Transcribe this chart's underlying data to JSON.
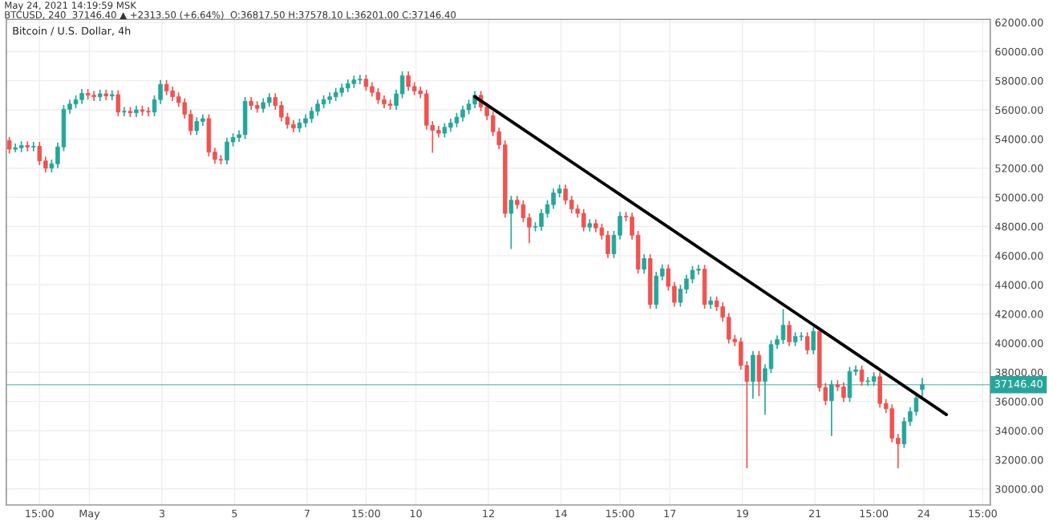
{
  "chart_data": {
    "type": "candlestick",
    "title": "Bitcoin / U.S. Dollar, 4h",
    "annotations": [
      "May 24, 2021 14:19:59 MSK",
      "BTCUSD, 240  37146.40 ▲ +2313.50 (+6.64%)  O:36817.50 H:37578.10 L:36201.00 C:37146.40"
    ],
    "x": [
      "2021-04-28T19:00",
      "2021-04-28T23:00",
      "2021-04-29T03:00",
      "2021-04-29T07:00",
      "2021-04-29T11:00",
      "2021-04-29T15:00",
      "2021-04-29T19:00",
      "2021-04-29T23:00",
      "2021-04-30T03:00",
      "2021-04-30T07:00",
      "2021-04-30T11:00",
      "2021-04-30T15:00",
      "2021-04-30T19:00",
      "2021-04-30T23:00",
      "2021-05-01T03:00",
      "2021-05-01T07:00",
      "2021-05-01T11:00",
      "2021-05-01T15:00",
      "2021-05-01T19:00",
      "2021-05-01T23:00",
      "2021-05-02T03:00",
      "2021-05-02T07:00",
      "2021-05-02T11:00",
      "2021-05-02T15:00",
      "2021-05-02T19:00",
      "2021-05-02T23:00",
      "2021-05-03T03:00",
      "2021-05-03T07:00",
      "2021-05-03T11:00",
      "2021-05-03T15:00",
      "2021-05-03T19:00",
      "2021-05-03T23:00",
      "2021-05-04T03:00",
      "2021-05-04T07:00",
      "2021-05-04T11:00",
      "2021-05-04T15:00",
      "2021-05-04T19:00",
      "2021-05-04T23:00",
      "2021-05-05T03:00",
      "2021-05-05T07:00",
      "2021-05-05T11:00",
      "2021-05-05T15:00",
      "2021-05-05T19:00",
      "2021-05-05T23:00",
      "2021-05-06T03:00",
      "2021-05-06T07:00",
      "2021-05-06T11:00",
      "2021-05-06T15:00",
      "2021-05-06T19:00",
      "2021-05-06T23:00",
      "2021-05-07T03:00",
      "2021-05-07T07:00",
      "2021-05-07T11:00",
      "2021-05-07T15:00",
      "2021-05-07T19:00",
      "2021-05-07T23:00",
      "2021-05-08T03:00",
      "2021-05-08T07:00",
      "2021-05-08T11:00",
      "2021-05-08T15:00",
      "2021-05-08T19:00",
      "2021-05-08T23:00",
      "2021-05-09T03:00",
      "2021-05-09T07:00",
      "2021-05-09T11:00",
      "2021-05-09T15:00",
      "2021-05-09T19:00",
      "2021-05-09T23:00",
      "2021-05-10T03:00",
      "2021-05-10T07:00",
      "2021-05-10T11:00",
      "2021-05-10T15:00",
      "2021-05-10T19:00",
      "2021-05-10T23:00",
      "2021-05-11T03:00",
      "2021-05-11T07:00",
      "2021-05-11T11:00",
      "2021-05-11T15:00",
      "2021-05-11T19:00",
      "2021-05-11T23:00",
      "2021-05-12T03:00",
      "2021-05-12T07:00",
      "2021-05-12T11:00",
      "2021-05-12T15:00",
      "2021-05-12T19:00",
      "2021-05-12T23:00",
      "2021-05-13T03:00",
      "2021-05-13T07:00",
      "2021-05-13T11:00",
      "2021-05-13T15:00",
      "2021-05-13T19:00",
      "2021-05-13T23:00",
      "2021-05-14T03:00",
      "2021-05-14T07:00",
      "2021-05-14T11:00",
      "2021-05-14T15:00",
      "2021-05-14T19:00",
      "2021-05-14T23:00",
      "2021-05-15T03:00",
      "2021-05-15T07:00",
      "2021-05-15T11:00",
      "2021-05-15T15:00",
      "2021-05-15T19:00",
      "2021-05-15T23:00",
      "2021-05-16T03:00",
      "2021-05-16T07:00",
      "2021-05-16T11:00",
      "2021-05-16T15:00",
      "2021-05-16T19:00",
      "2021-05-16T23:00",
      "2021-05-17T03:00",
      "2021-05-17T07:00",
      "2021-05-17T11:00",
      "2021-05-17T15:00",
      "2021-05-17T19:00",
      "2021-05-17T23:00",
      "2021-05-18T03:00",
      "2021-05-18T07:00",
      "2021-05-18T11:00",
      "2021-05-18T15:00",
      "2021-05-18T19:00",
      "2021-05-18T23:00",
      "2021-05-19T03:00",
      "2021-05-19T07:00",
      "2021-05-19T11:00",
      "2021-05-19T15:00",
      "2021-05-19T19:00",
      "2021-05-19T23:00",
      "2021-05-20T03:00",
      "2021-05-20T07:00",
      "2021-05-20T11:00",
      "2021-05-20T15:00",
      "2021-05-20T19:00",
      "2021-05-20T23:00",
      "2021-05-21T03:00",
      "2021-05-21T07:00",
      "2021-05-21T11:00",
      "2021-05-21T15:00",
      "2021-05-21T19:00",
      "2021-05-21T23:00",
      "2021-05-22T03:00",
      "2021-05-22T07:00",
      "2021-05-22T11:00",
      "2021-05-22T15:00",
      "2021-05-22T19:00",
      "2021-05-22T23:00",
      "2021-05-23T03:00",
      "2021-05-23T07:00",
      "2021-05-23T11:00",
      "2021-05-23T15:00",
      "2021-05-23T19:00",
      "2021-05-23T23:00"
    ],
    "ohlc": [
      [
        53900,
        54100,
        53050,
        53300
      ],
      [
        53300,
        53650,
        53150,
        53400
      ],
      [
        53400,
        53800,
        53150,
        53550
      ],
      [
        53550,
        53800,
        53200,
        53450
      ],
      [
        53450,
        53750,
        53200,
        53500
      ],
      [
        53500,
        53750,
        52250,
        52500
      ],
      [
        52500,
        52750,
        51750,
        52000
      ],
      [
        52000,
        52550,
        51750,
        52300
      ],
      [
        52300,
        53710,
        52050,
        53460
      ],
      [
        53460,
        56290,
        53210,
        56040
      ],
      [
        56040,
        56650,
        55790,
        56400
      ],
      [
        56400,
        56950,
        56150,
        56700
      ],
      [
        56700,
        57380,
        56450,
        57130
      ],
      [
        57130,
        57380,
        56750,
        57000
      ],
      [
        57000,
        57250,
        56650,
        56900
      ],
      [
        56900,
        57350,
        56650,
        57100
      ],
      [
        57100,
        57350,
        56700,
        56950
      ],
      [
        56950,
        57300,
        56700,
        57050
      ],
      [
        57050,
        57300,
        55600,
        55850
      ],
      [
        55850,
        56150,
        55600,
        55900
      ],
      [
        55900,
        56150,
        55550,
        55800
      ],
      [
        55800,
        56250,
        55550,
        56000
      ],
      [
        56000,
        56250,
        55650,
        55900
      ],
      [
        55900,
        56150,
        55600,
        55850
      ],
      [
        55850,
        56950,
        55600,
        56700
      ],
      [
        56700,
        58000,
        56450,
        57750
      ],
      [
        57750,
        58000,
        57050,
        57300
      ],
      [
        57300,
        57550,
        56650,
        56900
      ],
      [
        56900,
        57150,
        56250,
        56500
      ],
      [
        56500,
        56750,
        55450,
        55700
      ],
      [
        55700,
        55950,
        54320,
        54570
      ],
      [
        54570,
        55450,
        54320,
        55200
      ],
      [
        55200,
        55650,
        54950,
        55400
      ],
      [
        55400,
        55650,
        52850,
        53100
      ],
      [
        53100,
        53350,
        52350,
        52600
      ],
      [
        52600,
        52850,
        52300,
        52550
      ],
      [
        52550,
        54050,
        52300,
        53800
      ],
      [
        53800,
        54350,
        53550,
        54100
      ],
      [
        54100,
        54550,
        53850,
        54300
      ],
      [
        54300,
        56840,
        54050,
        56590
      ],
      [
        56590,
        56840,
        56050,
        56300
      ],
      [
        56300,
        56550,
        55850,
        56100
      ],
      [
        56100,
        56750,
        55850,
        56500
      ],
      [
        56500,
        57100,
        56250,
        56850
      ],
      [
        56850,
        57100,
        56050,
        56300
      ],
      [
        56300,
        56550,
        55250,
        55500
      ],
      [
        55500,
        55750,
        54750,
        55000
      ],
      [
        55000,
        55250,
        54500,
        54750
      ],
      [
        54750,
        55350,
        54500,
        55100
      ],
      [
        55100,
        55650,
        54850,
        55400
      ],
      [
        55400,
        56150,
        55150,
        55900
      ],
      [
        55900,
        56650,
        55650,
        56400
      ],
      [
        56400,
        56950,
        56150,
        56700
      ],
      [
        56700,
        57150,
        56450,
        56900
      ],
      [
        56900,
        57450,
        56650,
        57200
      ],
      [
        57200,
        57750,
        56950,
        57500
      ],
      [
        57500,
        58050,
        57250,
        57800
      ],
      [
        57800,
        58300,
        57550,
        58050
      ],
      [
        58050,
        58350,
        57800,
        58100
      ],
      [
        58100,
        58350,
        57350,
        57600
      ],
      [
        57600,
        57850,
        56950,
        57200
      ],
      [
        57200,
        57450,
        56450,
        56700
      ],
      [
        56700,
        56950,
        56150,
        56400
      ],
      [
        56400,
        56650,
        56050,
        56300
      ],
      [
        56300,
        57350,
        56050,
        57100
      ],
      [
        57100,
        58590,
        56850,
        58340
      ],
      [
        58340,
        58590,
        57350,
        57600
      ],
      [
        57600,
        57850,
        57050,
        57300
      ],
      [
        57300,
        57550,
        56850,
        57100
      ],
      [
        57100,
        57350,
        54690,
        54940
      ],
      [
        54940,
        55190,
        53100,
        54600
      ],
      [
        54600,
        54850,
        54150,
        54400
      ],
      [
        54400,
        55050,
        54150,
        54800
      ],
      [
        54800,
        55350,
        54550,
        55100
      ],
      [
        55100,
        55750,
        54850,
        55500
      ],
      [
        55500,
        56250,
        55250,
        56000
      ],
      [
        56000,
        56650,
        55750,
        56400
      ],
      [
        56400,
        57250,
        56150,
        57000
      ],
      [
        57000,
        57250,
        55950,
        56200
      ],
      [
        56200,
        56450,
        55350,
        55600
      ],
      [
        55600,
        55850,
        54250,
        54500
      ],
      [
        54500,
        54750,
        53350,
        53600
      ],
      [
        53600,
        53850,
        48650,
        48900
      ],
      [
        48900,
        50050,
        46500,
        49800
      ],
      [
        49800,
        50050,
        49250,
        49500
      ],
      [
        49500,
        49750,
        48350,
        48600
      ],
      [
        48600,
        48850,
        46900,
        47960
      ],
      [
        47960,
        48250,
        47710,
        48000
      ],
      [
        48000,
        49150,
        47750,
        48900
      ],
      [
        48900,
        49750,
        48650,
        49500
      ],
      [
        49500,
        50550,
        49250,
        50300
      ],
      [
        50300,
        50820,
        50050,
        50570
      ],
      [
        50570,
        50820,
        49550,
        49800
      ],
      [
        49800,
        50050,
        48950,
        49200
      ],
      [
        49200,
        49450,
        48650,
        48900
      ],
      [
        48900,
        49150,
        47710,
        47960
      ],
      [
        47960,
        48450,
        47710,
        48200
      ],
      [
        48200,
        48450,
        47650,
        47900
      ],
      [
        47900,
        48150,
        47150,
        47400
      ],
      [
        47400,
        47650,
        45880,
        46130
      ],
      [
        46130,
        47650,
        45880,
        47400
      ],
      [
        47400,
        48950,
        47150,
        48700
      ],
      [
        48700,
        48950,
        48400,
        48650
      ],
      [
        48650,
        48900,
        47150,
        47400
      ],
      [
        47400,
        47650,
        44820,
        45070
      ],
      [
        45070,
        46050,
        44820,
        45800
      ],
      [
        45800,
        46050,
        42400,
        42650
      ],
      [
        42650,
        44850,
        42400,
        44600
      ],
      [
        44600,
        45350,
        44350,
        45100
      ],
      [
        45100,
        45350,
        43650,
        43900
      ],
      [
        43900,
        44150,
        42550,
        42800
      ],
      [
        42800,
        43950,
        42550,
        43700
      ],
      [
        43700,
        44650,
        43450,
        44400
      ],
      [
        44400,
        45250,
        44150,
        45000
      ],
      [
        45000,
        45320,
        44750,
        45070
      ],
      [
        45070,
        45320,
        42400,
        42650
      ],
      [
        42650,
        43150,
        42400,
        42900
      ],
      [
        42900,
        43150,
        42250,
        42500
      ],
      [
        42500,
        42750,
        41520,
        41770
      ],
      [
        41770,
        42020,
        40020,
        40270
      ],
      [
        40270,
        40520,
        39840,
        40090
      ],
      [
        40090,
        40340,
        38220,
        38470
      ],
      [
        38470,
        38720,
        31460,
        37370
      ],
      [
        37370,
        39420,
        36230,
        39170
      ],
      [
        39170,
        39420,
        36400,
        37370
      ],
      [
        37370,
        38500,
        35140,
        38250
      ],
      [
        38250,
        40150,
        38000,
        39900
      ],
      [
        39900,
        40490,
        39650,
        40240
      ],
      [
        40240,
        42290,
        39990,
        41220
      ],
      [
        41220,
        41470,
        39840,
        40090
      ],
      [
        40090,
        40700,
        39840,
        40450
      ],
      [
        40450,
        40700,
        40200,
        40450
      ],
      [
        40450,
        40700,
        39280,
        39530
      ],
      [
        39530,
        41050,
        39280,
        40800
      ],
      [
        40800,
        41050,
        36710,
        36960
      ],
      [
        36960,
        37210,
        35800,
        36050
      ],
      [
        36050,
        37400,
        33670,
        37150
      ],
      [
        37150,
        37400,
        36750,
        37000
      ],
      [
        37000,
        37250,
        36020,
        36270
      ],
      [
        36270,
        38310,
        36020,
        38060
      ],
      [
        38060,
        38420,
        37810,
        38170
      ],
      [
        38170,
        38420,
        37120,
        37370
      ],
      [
        37370,
        37620,
        37120,
        37370
      ],
      [
        37370,
        37950,
        37120,
        37700
      ],
      [
        37700,
        37950,
        35610,
        35860
      ],
      [
        35860,
        36110,
        35250,
        35500
      ],
      [
        35500,
        35750,
        33230,
        33480
      ],
      [
        33480,
        33730,
        31460,
        33100
      ],
      [
        33100,
        34870,
        32850,
        34620
      ],
      [
        34620,
        35560,
        34370,
        35310
      ],
      [
        35310,
        36480,
        35060,
        36230
      ],
      [
        36817.5,
        37578.1,
        36201,
        37146.4
      ]
    ],
    "colors": [
      "#ef5350",
      "#26a69a",
      "#26a69a",
      "#ef5350",
      "#26a69a",
      "#ef5350",
      "#ef5350",
      "#26a69a",
      "#26a69a",
      "#26a69a",
      "#26a69a",
      "#26a69a",
      "#26a69a",
      "#ef5350",
      "#ef5350",
      "#26a69a",
      "#ef5350",
      "#26a69a",
      "#ef5350",
      "#26a69a",
      "#ef5350",
      "#26a69a",
      "#ef5350",
      "#ef5350",
      "#26a69a",
      "#26a69a",
      "#ef5350",
      "#ef5350",
      "#ef5350",
      "#ef5350",
      "#ef5350",
      "#26a69a",
      "#26a69a",
      "#ef5350",
      "#ef5350",
      "#ef5350",
      "#26a69a",
      "#26a69a",
      "#26a69a",
      "#26a69a",
      "#ef5350",
      "#ef5350",
      "#26a69a",
      "#26a69a",
      "#ef5350",
      "#ef5350",
      "#ef5350",
      "#ef5350",
      "#26a69a",
      "#26a69a",
      "#26a69a",
      "#26a69a",
      "#26a69a",
      "#26a69a",
      "#26a69a",
      "#26a69a",
      "#26a69a",
      "#26a69a",
      "#26a69a",
      "#ef5350",
      "#ef5350",
      "#ef5350",
      "#ef5350",
      "#ef5350",
      "#26a69a",
      "#26a69a",
      "#ef5350",
      "#ef5350",
      "#ef5350",
      "#ef5350",
      "#ef5350",
      "#ef5350",
      "#26a69a",
      "#26a69a",
      "#26a69a",
      "#26a69a",
      "#26a69a",
      "#26a69a",
      "#ef5350",
      "#ef5350",
      "#ef5350",
      "#ef5350",
      "#ef5350",
      "#26a69a",
      "#ef5350",
      "#ef5350",
      "#ef5350",
      "#26a69a",
      "#26a69a",
      "#26a69a",
      "#26a69a",
      "#26a69a",
      "#ef5350",
      "#ef5350",
      "#ef5350",
      "#ef5350",
      "#26a69a",
      "#ef5350",
      "#ef5350",
      "#ef5350",
      "#26a69a",
      "#26a69a",
      "#ef5350",
      "#ef5350",
      "#ef5350",
      "#26a69a",
      "#ef5350",
      "#26a69a",
      "#26a69a",
      "#ef5350",
      "#ef5350",
      "#26a69a",
      "#26a69a",
      "#26a69a",
      "#26a69a",
      "#ef5350",
      "#26a69a",
      "#ef5350",
      "#ef5350",
      "#ef5350",
      "#ef5350",
      "#ef5350",
      "#ef5350",
      "#26a69a",
      "#ef5350",
      "#26a69a",
      "#26a69a",
      "#26a69a",
      "#26a69a",
      "#ef5350",
      "#26a69a",
      "#26a69a",
      "#ef5350",
      "#26a69a",
      "#ef5350",
      "#ef5350",
      "#26a69a",
      "#ef5350",
      "#ef5350",
      "#26a69a",
      "#26a69a",
      "#ef5350",
      "#26a69a",
      "#26a69a",
      "#ef5350",
      "#ef5350",
      "#ef5350",
      "#ef5350",
      "#26a69a",
      "#26a69a",
      "#26a69a",
      "#26a69a"
    ],
    "series": [
      {
        "type": "line",
        "x": [
          "2021-05-11T15:00",
          "2021-05-24T15:00"
        ],
        "values": [
          56900,
          35100
        ],
        "color": "#000000"
      }
    ],
    "ref_lines": [
      {
        "axis": "y",
        "value": 37146.4,
        "label": "37146.40",
        "color": "#26a69a"
      }
    ],
    "xlim": [
      "2021-04-28T17:00",
      "2021-05-25T20:00"
    ],
    "xticks": [
      {
        "value": "2021-04-29T15:00",
        "label": "15:00"
      },
      {
        "value": "2021-05-01",
        "label": "May"
      },
      {
        "value": "2021-05-03",
        "label": "3"
      },
      {
        "value": "2021-05-05",
        "label": "5"
      },
      {
        "value": "2021-05-07",
        "label": "7"
      },
      {
        "value": "2021-05-08T15:00",
        "label": "15:00"
      },
      {
        "value": "2021-05-10",
        "label": "10"
      },
      {
        "value": "2021-05-12",
        "label": "12"
      },
      {
        "value": "2021-05-14",
        "label": "14"
      },
      {
        "value": "2021-05-15T15:00",
        "label": "15:00"
      },
      {
        "value": "2021-05-17",
        "label": "17"
      },
      {
        "value": "2021-05-19",
        "label": "19"
      },
      {
        "value": "2021-05-21",
        "label": "21"
      },
      {
        "value": "2021-05-22T15:00",
        "label": "15:00"
      },
      {
        "value": "2021-05-24",
        "label": "24"
      },
      {
        "value": "2021-05-25T15:00",
        "label": "15:00"
      }
    ],
    "ylim": [
      28900,
      62200
    ],
    "yticks": [
      {
        "value": 30000,
        "label": "30000.00"
      },
      {
        "value": 32000,
        "label": "32000.00"
      },
      {
        "value": 34000,
        "label": "34000.00"
      },
      {
        "value": 36000,
        "label": "36000.00"
      },
      {
        "value": 38000,
        "label": "38000.00"
      },
      {
        "value": 40000,
        "label": "40000.00"
      },
      {
        "value": 42000,
        "label": "42000.00"
      },
      {
        "value": 44000,
        "label": "44000.00"
      },
      {
        "value": 46000,
        "label": "46000.00"
      },
      {
        "value": 48000,
        "label": "48000.00"
      },
      {
        "value": 50000,
        "label": "50000.00"
      },
      {
        "value": 52000,
        "label": "52000.00"
      },
      {
        "value": 54000,
        "label": "54000.00"
      },
      {
        "value": 56000,
        "label": "56000.00"
      },
      {
        "value": 58000,
        "label": "58000.00"
      },
      {
        "value": 60000,
        "label": "60000.00"
      },
      {
        "value": 62000,
        "label": "62000.00"
      }
    ],
    "grid": true
  }
}
